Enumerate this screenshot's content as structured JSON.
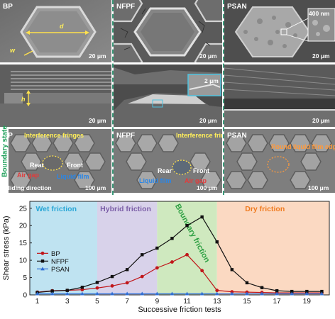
{
  "panels": {
    "bp": "BP",
    "nfpf": "NFPF",
    "psan": "PSAN"
  },
  "scalebars": {
    "um20": "20 μm",
    "um100": "100 μm",
    "um2": "2 μm",
    "nm400": "400 nm"
  },
  "dims": {
    "d": "d",
    "w": "w",
    "h": "h"
  },
  "side_label": "Boundary state",
  "annotations": {
    "interference_fringes": "Interference fringes",
    "air_gap": "Air gap",
    "liquid_film": "Liquid film",
    "rear": "Rear",
    "front": "Front",
    "sliding_direction": "Sliding direction",
    "round_liquid_film_edge": "Round liquid film edge"
  },
  "chart_data": {
    "type": "line",
    "xlabel": "Successive friction tests",
    "ylabel": "Shear stress (kPa)",
    "xlim": [
      0.5,
      20.5
    ],
    "ylim": [
      0,
      27
    ],
    "xticks": [
      1,
      3,
      5,
      7,
      9,
      11,
      13,
      15,
      17,
      19
    ],
    "yticks": [
      0,
      5,
      10,
      15,
      20,
      25
    ],
    "legend_position": "left",
    "regions": [
      {
        "name": "Wet friction",
        "from": 0.5,
        "to": 5,
        "color": "#bfe3f1",
        "text_color": "#2aa7d6"
      },
      {
        "name": "Hybrid friction",
        "from": 5,
        "to": 9,
        "color": "#d8d2ea",
        "text_color": "#7b5ea7"
      },
      {
        "name": "Boundary friction",
        "from": 9,
        "to": 13,
        "color": "#cfe9bf",
        "text_color": "#2ea043"
      },
      {
        "name": "Dry friction",
        "from": 13,
        "to": 20.5,
        "color": "#fbd9c2",
        "text_color": "#f07b1f"
      }
    ],
    "x": [
      1,
      2,
      3,
      4,
      5,
      6,
      7,
      8,
      9,
      10,
      11,
      12,
      13,
      14,
      15,
      16,
      17,
      18,
      19,
      20
    ],
    "series": [
      {
        "name": "BP",
        "color": "#c0161a",
        "marker": "circle",
        "values": [
          0.8,
          1.2,
          1.3,
          1.5,
          2.0,
          2.6,
          3.5,
          5.3,
          7.8,
          9.5,
          11.6,
          7.0,
          1.3,
          0.9,
          0.8,
          0.7,
          0.6,
          0.6,
          0.6,
          0.6
        ]
      },
      {
        "name": "NFPF",
        "color": "#111111",
        "marker": "square",
        "values": [
          0.7,
          1.1,
          1.3,
          2.2,
          3.6,
          5.3,
          7.3,
          11.6,
          13.5,
          16.3,
          20.0,
          22.5,
          15.3,
          7.3,
          3.5,
          2.1,
          1.2,
          1.0,
          1.0,
          1.0
        ]
      },
      {
        "name": "PSAN",
        "color": "#2f6fd6",
        "marker": "triangle",
        "values": [
          0.3,
          0.3,
          0.3,
          0.3,
          0.3,
          0.3,
          0.3,
          0.3,
          0.3,
          0.3,
          0.3,
          0.3,
          0.3,
          0.3,
          0.3,
          0.3,
          0.3,
          0.3,
          0.3,
          0.3
        ]
      }
    ]
  }
}
